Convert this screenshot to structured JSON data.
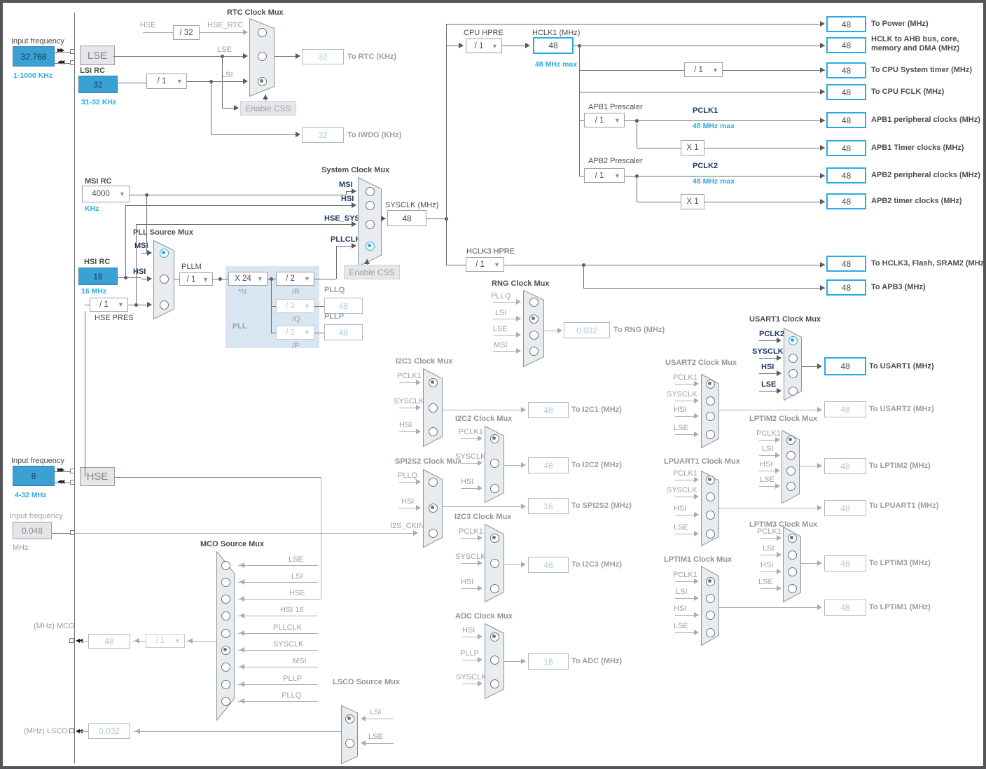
{
  "colors": {
    "accent": "#29abe2",
    "input_fill": "#3ba0d4",
    "inactive_value": "#aac8e6"
  },
  "inputs": {
    "lse": {
      "label": "Input frequency",
      "value": "32.768",
      "range": "1-1000 KHz"
    },
    "lsi": {
      "label": "LSI RC",
      "value": "32",
      "range": "31-32 KHz"
    },
    "msi": {
      "label": "MSI RC",
      "value": "4000",
      "unit": "KHz"
    },
    "hsi": {
      "label": "HSI RC",
      "value": "16",
      "range": "16 MHz"
    },
    "hse": {
      "label": "Input frequency",
      "value": "8",
      "range": "4-32 MHz"
    },
    "ext": {
      "label": "Input frequency",
      "value": "0.048",
      "unit": "MHz"
    }
  },
  "sources": {
    "lse": "LSE",
    "hse": "HSE"
  },
  "buttons": {
    "enable_css": "Enable CSS"
  },
  "dividers": {
    "rtc_hse": "/ 32",
    "lsi": "/ 1",
    "cpu_hpre": "/ 1",
    "systick": "/ 1",
    "apb1": "/ 1",
    "apb2": "/ 1",
    "apb1_mul": "X 1",
    "apb2_mul": "X 1",
    "hclk3": "/ 1",
    "hse_pres": "/ 1",
    "pllm": "/ 1",
    "plln": "X 24",
    "pllr": "/ 2",
    "pllq": "/ 2",
    "pllp": "/ 2",
    "mco": "/ 1"
  },
  "labels": {
    "hse_top": "HSE",
    "hse_rtc": "HSE_RTC",
    "lse": "LSE",
    "lsi": "LSI",
    "cpu_hpre": "CPU HPRE",
    "hclk1": "HCLK1 (MHz)",
    "hclk1_max": "48 MHz max",
    "apb1": "APB1 Prescaler",
    "apb2": "APB2 Prescaler",
    "pclk1": "PCLK1",
    "pclk2": "PCLK2",
    "pclk_max": "48 MHz max",
    "hclk3": "HCLK3 HPRE",
    "sysclk": "SYSCLK (MHz)",
    "pllm": "PLLM",
    "hse_pres": "HSE PRES",
    "pll": "PLL",
    "n": "*N",
    "r": "/R",
    "q": "/Q",
    "p": "/P",
    "pllq": "PLLQ",
    "pllp": "PLLP",
    "mco": "(MHz) MCO",
    "lsco": "(MHz) LSCO"
  },
  "muxes": {
    "rtc": {
      "title": "RTC Clock Mux",
      "inputs": [
        "HSE_RTC",
        "LSE",
        "LSI"
      ],
      "selected": 2,
      "accent": false
    },
    "system": {
      "title": "System Clock Mux",
      "inputs": [
        "MSI",
        "HSI",
        "HSE_SYS",
        "PLLCLK"
      ],
      "selected": 3,
      "accent": true
    },
    "pll_src": {
      "title": "PLL Source Mux",
      "inputs": [
        "MSI",
        "HSI",
        ""
      ],
      "selected": 0,
      "accent": true
    },
    "rng": {
      "title": "RNG Clock Mux",
      "inputs": [
        "PLLQ",
        "LSI",
        "LSE",
        "MSI"
      ],
      "selected": 1,
      "accent": false
    },
    "i2c1": {
      "title": "I2C1 Clock Mux",
      "inputs": [
        "PCLK1",
        "SYSCLK",
        "HSI"
      ],
      "selected": 0,
      "accent": false
    },
    "i2c2": {
      "title": "I2C2 Clock Mux",
      "inputs": [
        "PCLK1",
        "SYSCLK",
        "HSI"
      ],
      "selected": 0,
      "accent": false
    },
    "spi2s2": {
      "title": "SPI2S2 Clock Mux",
      "inputs": [
        "PLLQ",
        "HSI",
        "I2S_CKIN"
      ],
      "selected": 1,
      "accent": false
    },
    "i2c3": {
      "title": "I2C3 Clock Mux",
      "inputs": [
        "PCLK1",
        "SYSCLK",
        "HSI"
      ],
      "selected": 0,
      "accent": false
    },
    "adc": {
      "title": "ADC Clock Mux",
      "inputs": [
        "HSI",
        "PLLP",
        "SYSCLK"
      ],
      "selected": 0,
      "accent": false
    },
    "usart1": {
      "title": "USART1 Clock Mux",
      "inputs": [
        "PCLK2",
        "SYSCLK",
        "HSI",
        "LSE"
      ],
      "selected": 0,
      "accent": true
    },
    "usart2": {
      "title": "USART2 Clock Mux",
      "inputs": [
        "PCLK1",
        "SYSCLK",
        "HSI",
        "LSE"
      ],
      "selected": 0,
      "accent": false
    },
    "lptim2": {
      "title": "LPTIM2 Clock Mux",
      "inputs": [
        "PCLK1",
        "LSI",
        "HSI",
        "LSE"
      ],
      "selected": 0,
      "accent": false
    },
    "lpuart1": {
      "title": "LPUART1 Clock Mux",
      "inputs": [
        "PCLK1",
        "SYSCLK",
        "HSI",
        "LSE"
      ],
      "selected": 0,
      "accent": false
    },
    "lptim3": {
      "title": "LPTIM3 Clock Mux",
      "inputs": [
        "PCLK1",
        "LSI",
        "HSI",
        "LSE"
      ],
      "selected": 0,
      "accent": false
    },
    "lptim1": {
      "title": "LPTIM1 Clock Mux",
      "inputs": [
        "PCLK1",
        "LSI",
        "HSI",
        "LSE"
      ],
      "selected": 0,
      "accent": false
    },
    "mco": {
      "title": "MCO Source Mux",
      "inputs": [
        "LSE",
        "LSI",
        "HSE",
        "HSI 16",
        "PLLCLK",
        "SYSCLK",
        "MSI",
        "PLLP",
        "PLLQ"
      ],
      "selected": 5,
      "accent": false
    },
    "lsco": {
      "title": "LSCO Source Mux",
      "inputs": [
        "LSI",
        "LSE"
      ],
      "selected": 0,
      "accent": false
    }
  },
  "outputs": {
    "to_rtc": {
      "value": "32",
      "label": "To RTC (KHz)"
    },
    "to_iwdg": {
      "value": "32",
      "label": "To IWDG (KHz)"
    },
    "sysclk": {
      "value": "48",
      "label": "SYSCLK (MHz)"
    },
    "hclk1": {
      "value": "48",
      "label": "HCLK1 (MHz)"
    },
    "to_power": {
      "value": "48",
      "label": "To Power (MHz)"
    },
    "ahb": {
      "value": "48",
      "label": "HCLK to AHB bus, core, memory and DMA (MHz)"
    },
    "cpu_timer": {
      "value": "48",
      "label": "To CPU System timer (MHz)"
    },
    "cpu_fclk": {
      "value": "48",
      "label": "To CPU FCLK (MHz)"
    },
    "apb1_p": {
      "value": "48",
      "label": "APB1 peripheral clocks (MHz)"
    },
    "apb1_t": {
      "value": "48",
      "label": "APB1 Timer clocks (MHz)"
    },
    "apb2_p": {
      "value": "48",
      "label": "APB2 peripheral clocks (MHz)"
    },
    "apb2_t": {
      "value": "48",
      "label": "APB2 timer clocks (MHz)"
    },
    "hclk3": {
      "value": "48",
      "label": "To HCLK3, Flash, SRAM2 (MHz)"
    },
    "apb3": {
      "value": "48",
      "label": "To APB3 (MHz)"
    },
    "rng": {
      "value": "0.032",
      "label": "To RNG (MHz)"
    },
    "usart1": {
      "value": "48",
      "label": "To USART1 (MHz)"
    },
    "usart2": {
      "value": "48",
      "label": "To USART2 (MHz)"
    },
    "lptim2": {
      "value": "48",
      "label": "To LPTIM2 (MHz)"
    },
    "lpuart1": {
      "value": "48",
      "label": "To LPUART1 (MHz)"
    },
    "lptim3": {
      "value": "48",
      "label": "To LPTIM3 (MHz)"
    },
    "lptim1": {
      "value": "48",
      "label": "To LPTIM1 (MHz)"
    },
    "i2c1": {
      "value": "48",
      "label": "To I2C1 (MHz)"
    },
    "i2c2": {
      "value": "48",
      "label": "To I2C2 (MHz)"
    },
    "spi2s2": {
      "value": "16",
      "label": "To SPI2S2 (MHz)"
    },
    "i2c3": {
      "value": "48",
      "label": "To I2C3 (MHz)"
    },
    "adc": {
      "value": "16",
      "label": "To ADC (MHz)"
    },
    "pllq": {
      "value": "48",
      "label": "PLLQ"
    },
    "pllp": {
      "value": "48",
      "label": "PLLP"
    },
    "mco": {
      "value": "48",
      "label": "(MHz) MCO"
    },
    "lsco": {
      "value": "0.032",
      "label": "(MHz) LSCO"
    }
  }
}
